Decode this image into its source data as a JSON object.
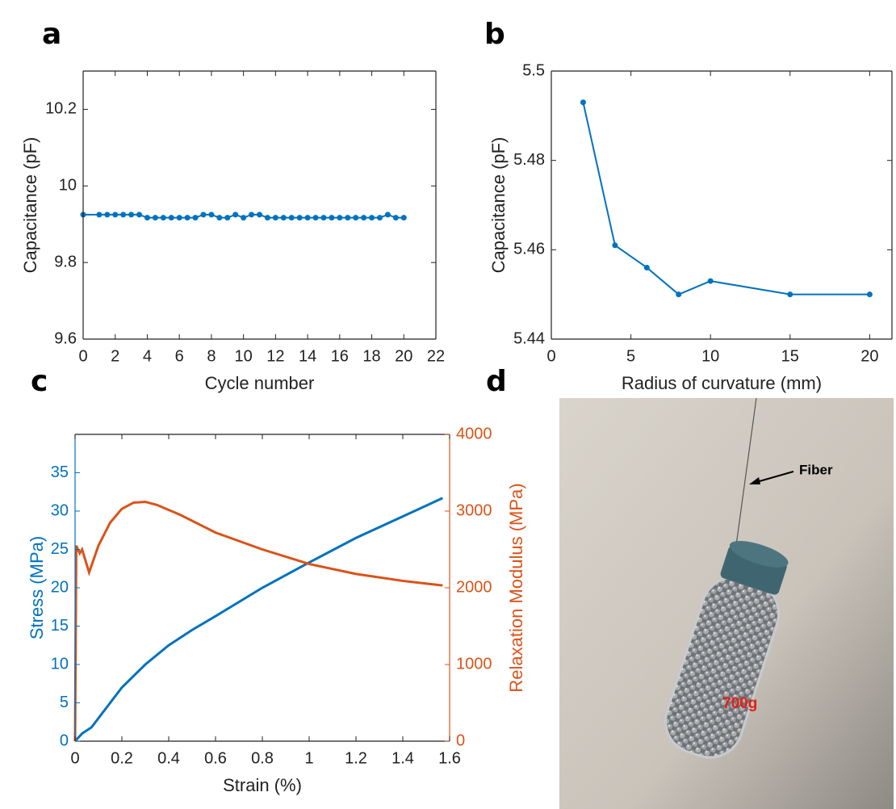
{
  "chart_data": [
    {
      "type": "line",
      "panel_label": "a",
      "xlabel": "Cycle number",
      "ylabel": "Capacitance (pF)",
      "xlim": [
        0,
        22
      ],
      "ylim": [
        9.6,
        10.3
      ],
      "xticks": [
        0,
        2,
        4,
        6,
        8,
        10,
        12,
        14,
        16,
        18,
        20,
        22
      ],
      "yticks": [
        9.6,
        9.8,
        10,
        10.2
      ],
      "markers": true,
      "series": [
        {
          "color": "#0072bd",
          "x": [
            0,
            1,
            1.5,
            2,
            2.5,
            3,
            3.5,
            4,
            4.5,
            5,
            5.5,
            6,
            6.5,
            7,
            7.5,
            8,
            8.5,
            9,
            9.5,
            10,
            10.5,
            11,
            11.5,
            12,
            12.5,
            13,
            13.5,
            14,
            14.5,
            15,
            15.5,
            16,
            16.5,
            17,
            17.5,
            18,
            18.5,
            19,
            19.5,
            20
          ],
          "values": [
            9.925,
            9.925,
            9.925,
            9.925,
            9.925,
            9.925,
            9.925,
            9.917,
            9.917,
            9.917,
            9.917,
            9.917,
            9.917,
            9.917,
            9.925,
            9.925,
            9.917,
            9.917,
            9.925,
            9.917,
            9.925,
            9.925,
            9.917,
            9.917,
            9.917,
            9.917,
            9.917,
            9.917,
            9.917,
            9.917,
            9.917,
            9.917,
            9.917,
            9.917,
            9.917,
            9.917,
            9.917,
            9.925,
            9.917,
            9.917
          ]
        }
      ]
    },
    {
      "type": "line",
      "panel_label": "b",
      "xlabel": "Radius of curvature (mm)",
      "ylabel": "Capacitance (pF)",
      "xlim": [
        0,
        21.4
      ],
      "ylim": [
        5.44,
        5.5
      ],
      "xticks": [
        0,
        5,
        10,
        15,
        20
      ],
      "yticks": [
        5.44,
        5.46,
        5.48,
        5.5
      ],
      "markers": true,
      "series": [
        {
          "color": "#0072bd",
          "x": [
            2,
            4,
            6,
            8,
            10,
            15,
            20
          ],
          "values": [
            5.493,
            5.461,
            5.456,
            5.45,
            5.453,
            5.45,
            5.45
          ]
        }
      ]
    },
    {
      "type": "line",
      "panel_label": "c",
      "xlabel": "Strain (%)",
      "ylabel": "Stress (MPa)",
      "y2label": "Relaxation Modulus (MPa)",
      "xlim": [
        0,
        1.6
      ],
      "ylim": [
        0,
        40
      ],
      "y2lim": [
        0,
        4000
      ],
      "xticks": [
        0,
        0.2,
        0.4,
        0.6,
        0.8,
        1,
        1.2,
        1.4,
        1.6
      ],
      "yticks": [
        0,
        5,
        10,
        15,
        20,
        25,
        30,
        35
      ],
      "y2ticks": [
        0,
        1000,
        2000,
        3000,
        4000
      ],
      "markers": false,
      "series": [
        {
          "color": "#0072bd",
          "axis": "y",
          "x": [
            0,
            0.03,
            0.07,
            0.1,
            0.15,
            0.2,
            0.3,
            0.4,
            0.5,
            0.6,
            0.8,
            1.0,
            1.2,
            1.4,
            1.57
          ],
          "values": [
            0,
            1,
            1.8,
            3,
            5,
            7,
            10,
            12.5,
            14.5,
            16.3,
            20,
            23.3,
            26.5,
            29.3,
            31.7
          ]
        },
        {
          "color": "#d95319",
          "axis": "y2",
          "x": [
            0,
            0.005,
            0.02,
            0.03,
            0.06,
            0.1,
            0.15,
            0.2,
            0.25,
            0.3,
            0.35,
            0.45,
            0.6,
            0.8,
            1.0,
            1.2,
            1.4,
            1.57
          ],
          "values": [
            0,
            2550,
            2450,
            2500,
            2200,
            2550,
            2850,
            3030,
            3110,
            3120,
            3080,
            2950,
            2720,
            2500,
            2310,
            2180,
            2090,
            2030
          ]
        }
      ]
    }
  ],
  "photo": {
    "panel_label": "d",
    "arrow_label": "Fiber",
    "weight_label": "700g"
  }
}
